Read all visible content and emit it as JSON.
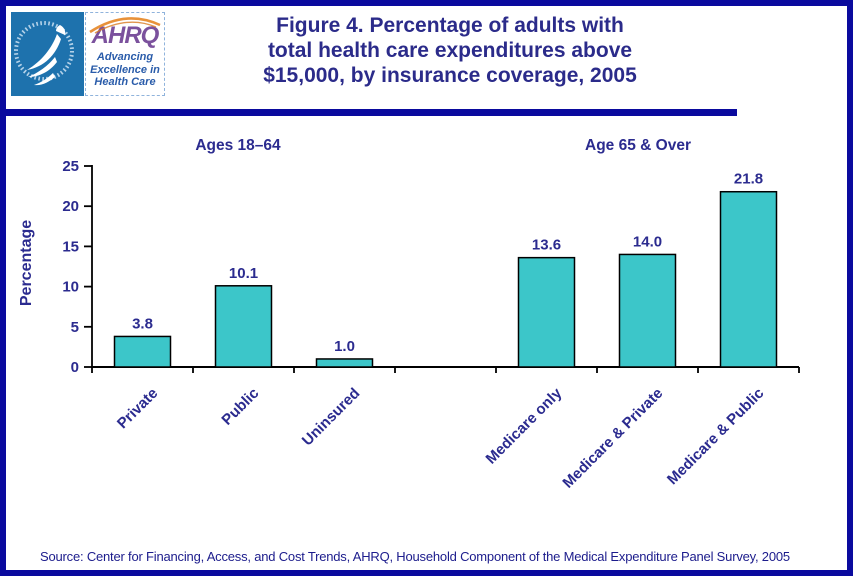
{
  "header": {
    "title_lines": [
      "Figure 4. Percentage of adults with",
      "total health care expenditures above",
      "$15,000, by insurance coverage, 2005"
    ],
    "logo": {
      "hhs_alt": "U.S. Department of Health & Human Services seal",
      "ahrq_acronym": "AHRQ",
      "tagline_lines": [
        "Advancing",
        "Excellence in",
        "Health Care"
      ]
    }
  },
  "chart_data": {
    "type": "bar",
    "title": "Figure 4. Percentage of adults with total health care expenditures above $15,000, by insurance coverage, 2005",
    "xlabel": "",
    "ylabel": "Percentage",
    "ylim": [
      0,
      25
    ],
    "yticks": [
      0,
      5,
      10,
      15,
      20,
      25
    ],
    "grid": false,
    "legend": "none",
    "bar_color": "#3cc6c9",
    "bar_border_color": "#000000",
    "label_color": "#2b2b8f",
    "groups": [
      {
        "label": "Ages 18–64",
        "categories": [
          "Private",
          "Public",
          "Uninsured"
        ],
        "values": [
          3.8,
          10.1,
          1.0
        ]
      },
      {
        "label": "Age 65 & Over",
        "categories": [
          "Medicare only",
          "Medicare & Private",
          "Medicare & Public"
        ],
        "values": [
          13.6,
          14.0,
          21.8
        ]
      }
    ]
  },
  "footer": {
    "source": "Source: Center for Financing, Access, and Cost Trends, AHRQ, Household Component of the Medical Expenditure Panel Survey, 2005"
  },
  "colors": {
    "navy_text": "#2b2b8a",
    "border_blue": "#0a0a9e",
    "bar_teal": "#3cc6c9",
    "hhs_blue": "#1e72ad",
    "ahrq_purple": "#7b519d",
    "ahrq_blue": "#2a5caa",
    "swoosh_orange": "#e8923a"
  }
}
